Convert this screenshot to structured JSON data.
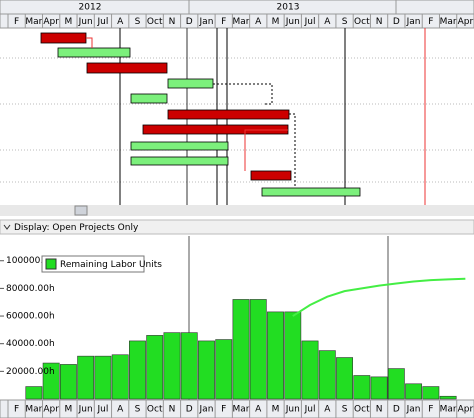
{
  "timescale": {
    "years": [
      "2012",
      "2013"
    ],
    "months": [
      "F",
      "Mar",
      "Apr",
      "M",
      "Jun",
      "Jul",
      "A",
      "S",
      "Oct",
      "N",
      "D",
      "Jan",
      "F",
      "Mar",
      "A",
      "M",
      "Jun",
      "Jul",
      "A",
      "S",
      "Oct",
      "N",
      "D",
      "Jan",
      "F",
      "Mar",
      "Apr"
    ]
  },
  "display_bar": {
    "text": "Display: Open Projects Only"
  },
  "chart_data": {
    "type": "bar",
    "categories": [
      "F",
      "Mar",
      "Apr",
      "M",
      "Jun",
      "Jul",
      "A",
      "S",
      "Oct",
      "N",
      "D",
      "Jan",
      "F",
      "Mar",
      "A",
      "M",
      "Jun",
      "Jul",
      "A",
      "S",
      "Oct",
      "N",
      "D",
      "Jan",
      "F",
      "Mar",
      "Apr"
    ],
    "series": [
      {
        "name": "Remaining Labor Units",
        "color": "#22dd22",
        "values": [
          0,
          9000,
          26000,
          25000,
          31000,
          31000,
          32000,
          42000,
          46000,
          48000,
          48000,
          42000,
          43000,
          72000,
          72000,
          63000,
          63000,
          42000,
          35000,
          30000,
          17000,
          16000,
          22000,
          11000,
          9000,
          2000,
          0
        ]
      }
    ],
    "line": {
      "color": "#44ee44",
      "values": [
        null,
        null,
        null,
        null,
        null,
        null,
        null,
        null,
        null,
        null,
        null,
        null,
        null,
        null,
        null,
        null,
        60000,
        68000,
        74000,
        78000,
        80000,
        82000,
        83500,
        85000,
        86000,
        86500,
        87000
      ]
    },
    "ylim": [
      0,
      115000
    ],
    "yticks": [
      {
        "value": 20000,
        "label": "20000.00h"
      },
      {
        "value": 40000,
        "label": "40000.00h"
      },
      {
        "value": 60000,
        "label": "60000.00h"
      },
      {
        "value": 80000,
        "label": "80000.00h"
      },
      {
        "value": 100000,
        "label": "100000.00h"
      }
    ],
    "legend": "top-left"
  }
}
